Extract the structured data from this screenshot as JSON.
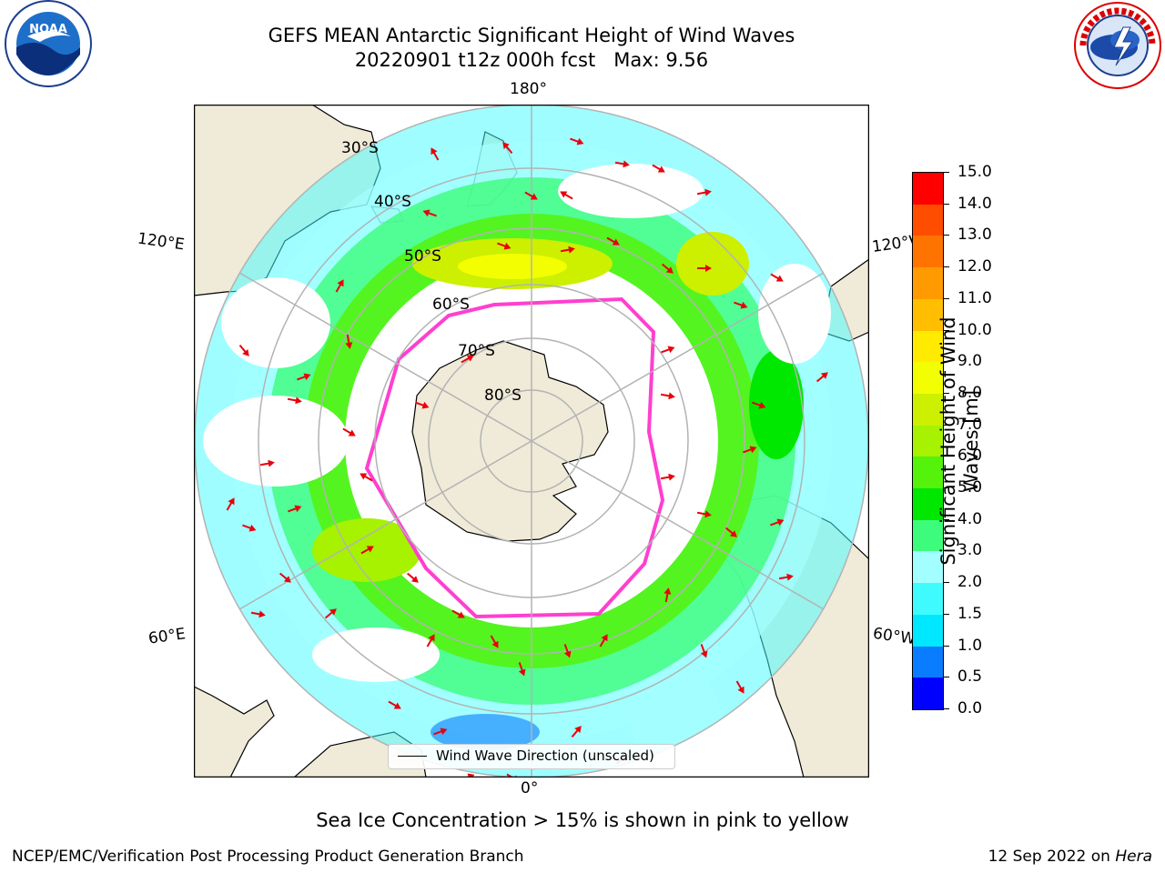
{
  "header": {
    "title_line1": "GEFS MEAN Antarctic Significant Height of Wind Waves",
    "title_line2": "20220901 t12z 000h fcst   Max: 9.56"
  },
  "logos": {
    "left": {
      "name": "noaa-logo",
      "text": "NOAA",
      "ring_text": "NATIONAL OCEANIC AND ATMOSPHERIC ADMINISTRATION · U.S. DEPARTMENT OF COMMERCE"
    },
    "right": {
      "name": "nws-logo",
      "ring_text": "NATIONAL WEATHER SERVICE"
    }
  },
  "map": {
    "projection": "south polar stereographic",
    "longitude_labels": {
      "top": "180°",
      "bottom": "0°",
      "left_upper": "120°E",
      "right_upper": "120°W",
      "left_lower": "60°E",
      "right_lower": "60°W"
    },
    "latitude_labels": [
      "30°S",
      "40°S",
      "50°S",
      "60°S",
      "70°S",
      "80°S"
    ],
    "legend": {
      "entry": "Wind Wave Direction (unscaled)"
    },
    "colors": {
      "land": "#efebd8",
      "ocean_blank": "#ffffff",
      "ice_edge": "#ff3fcf",
      "arrow": "#e8000b",
      "grid": "#b3b3b3"
    }
  },
  "colorbar": {
    "label": "Significant Height of Wind Waves [m]",
    "label_line1": "Significant Height of Wind",
    "label_line2": "Waves [m]",
    "ticks": [
      "0.0",
      "0.5",
      "1.0",
      "1.5",
      "2.0",
      "3.0",
      "4.0",
      "5.0",
      "6.0",
      "7.0",
      "8.0",
      "9.0",
      "10.0",
      "11.0",
      "12.0",
      "13.0",
      "14.0",
      "15.0"
    ],
    "colors": [
      "#0000ff",
      "#0a7cff",
      "#00e8ff",
      "#3ffbff",
      "#a3ffff",
      "#3dfc7b",
      "#00e800",
      "#55f20c",
      "#a6f200",
      "#ccf000",
      "#f3ff00",
      "#ffea00",
      "#ffbf00",
      "#ff9b00",
      "#ff7400",
      "#ff4d00",
      "#ff0000"
    ]
  },
  "footer": {
    "note": "Sea Ice Concentration > 15% is shown in pink to yellow",
    "left": "NCEP/EMC/Verification Post Processing Product Generation Branch",
    "right_date": "12 Sep 2022 on ",
    "right_host": "Hera"
  }
}
